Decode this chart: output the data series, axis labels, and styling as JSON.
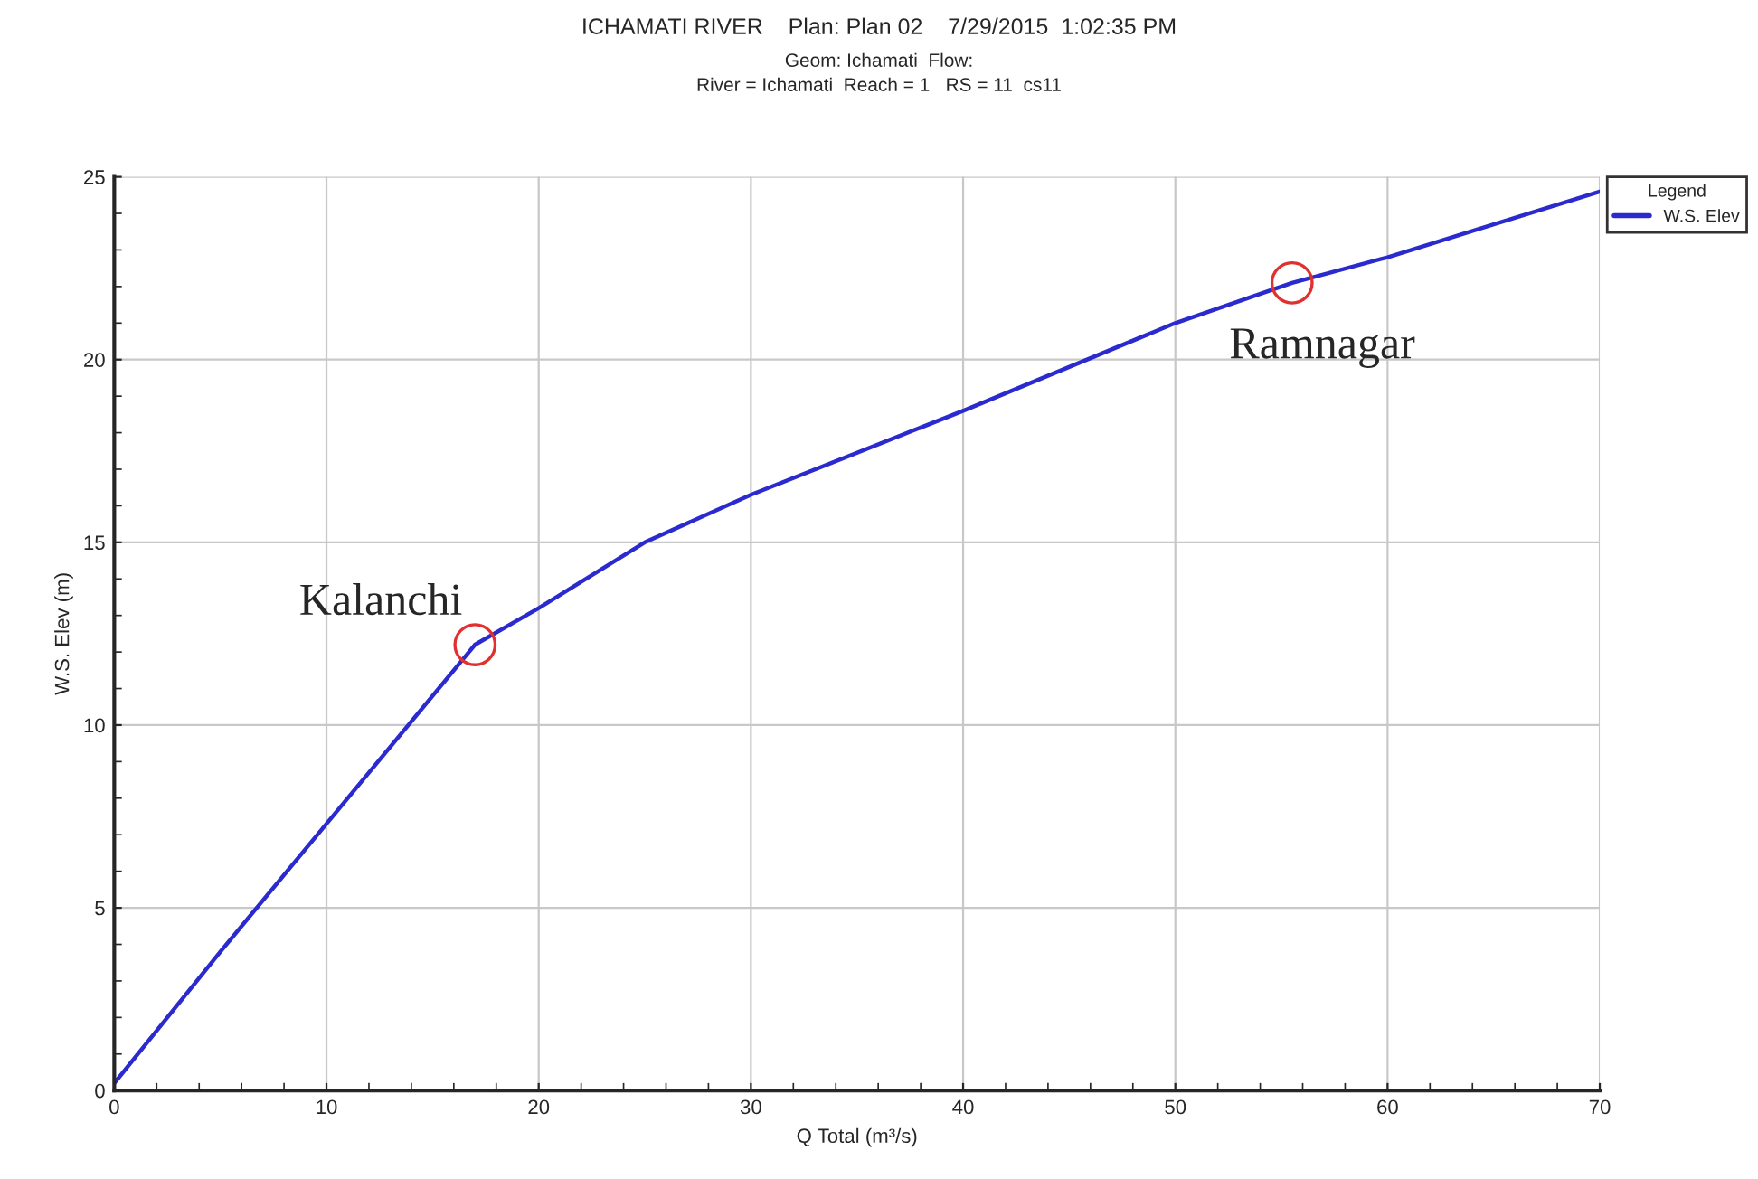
{
  "chart_data": {
    "type": "line",
    "title": "ICHAMATI RIVER    Plan: Plan 02    7/29/2015  1:02:35 PM",
    "subtitle": "Geom: Ichamati  Flow:\nRiver = Ichamati  Reach = 1   RS = 11  cs11",
    "xlabel": "Q Total (m³/s)",
    "ylabel": "W.S. Elev (m)",
    "legend_title": "Legend",
    "x": [
      0,
      5,
      10,
      17,
      20,
      25,
      30,
      40,
      50,
      55.5,
      60,
      70
    ],
    "series": [
      {
        "name": "W.S. Elev",
        "color": "#2a2acf",
        "values": [
          0.2,
          3.8,
          7.3,
          12.2,
          13.2,
          15.0,
          16.3,
          18.6,
          21.0,
          22.1,
          22.8,
          24.6
        ]
      }
    ],
    "xlim": [
      0,
      70
    ],
    "xticks": [
      0,
      10,
      20,
      30,
      40,
      50,
      60,
      70
    ],
    "ylim": [
      0,
      25
    ],
    "yticks": [
      0,
      5,
      10,
      15,
      20,
      25
    ],
    "grid": true,
    "legend": "top right",
    "marker": "none",
    "line_style": "solid",
    "annotations": [
      {
        "text": "Kalanchi",
        "x": 17,
        "y": 12.2
      },
      {
        "text": "Ramnagar",
        "x": 55.5,
        "y": 22.1
      }
    ]
  }
}
